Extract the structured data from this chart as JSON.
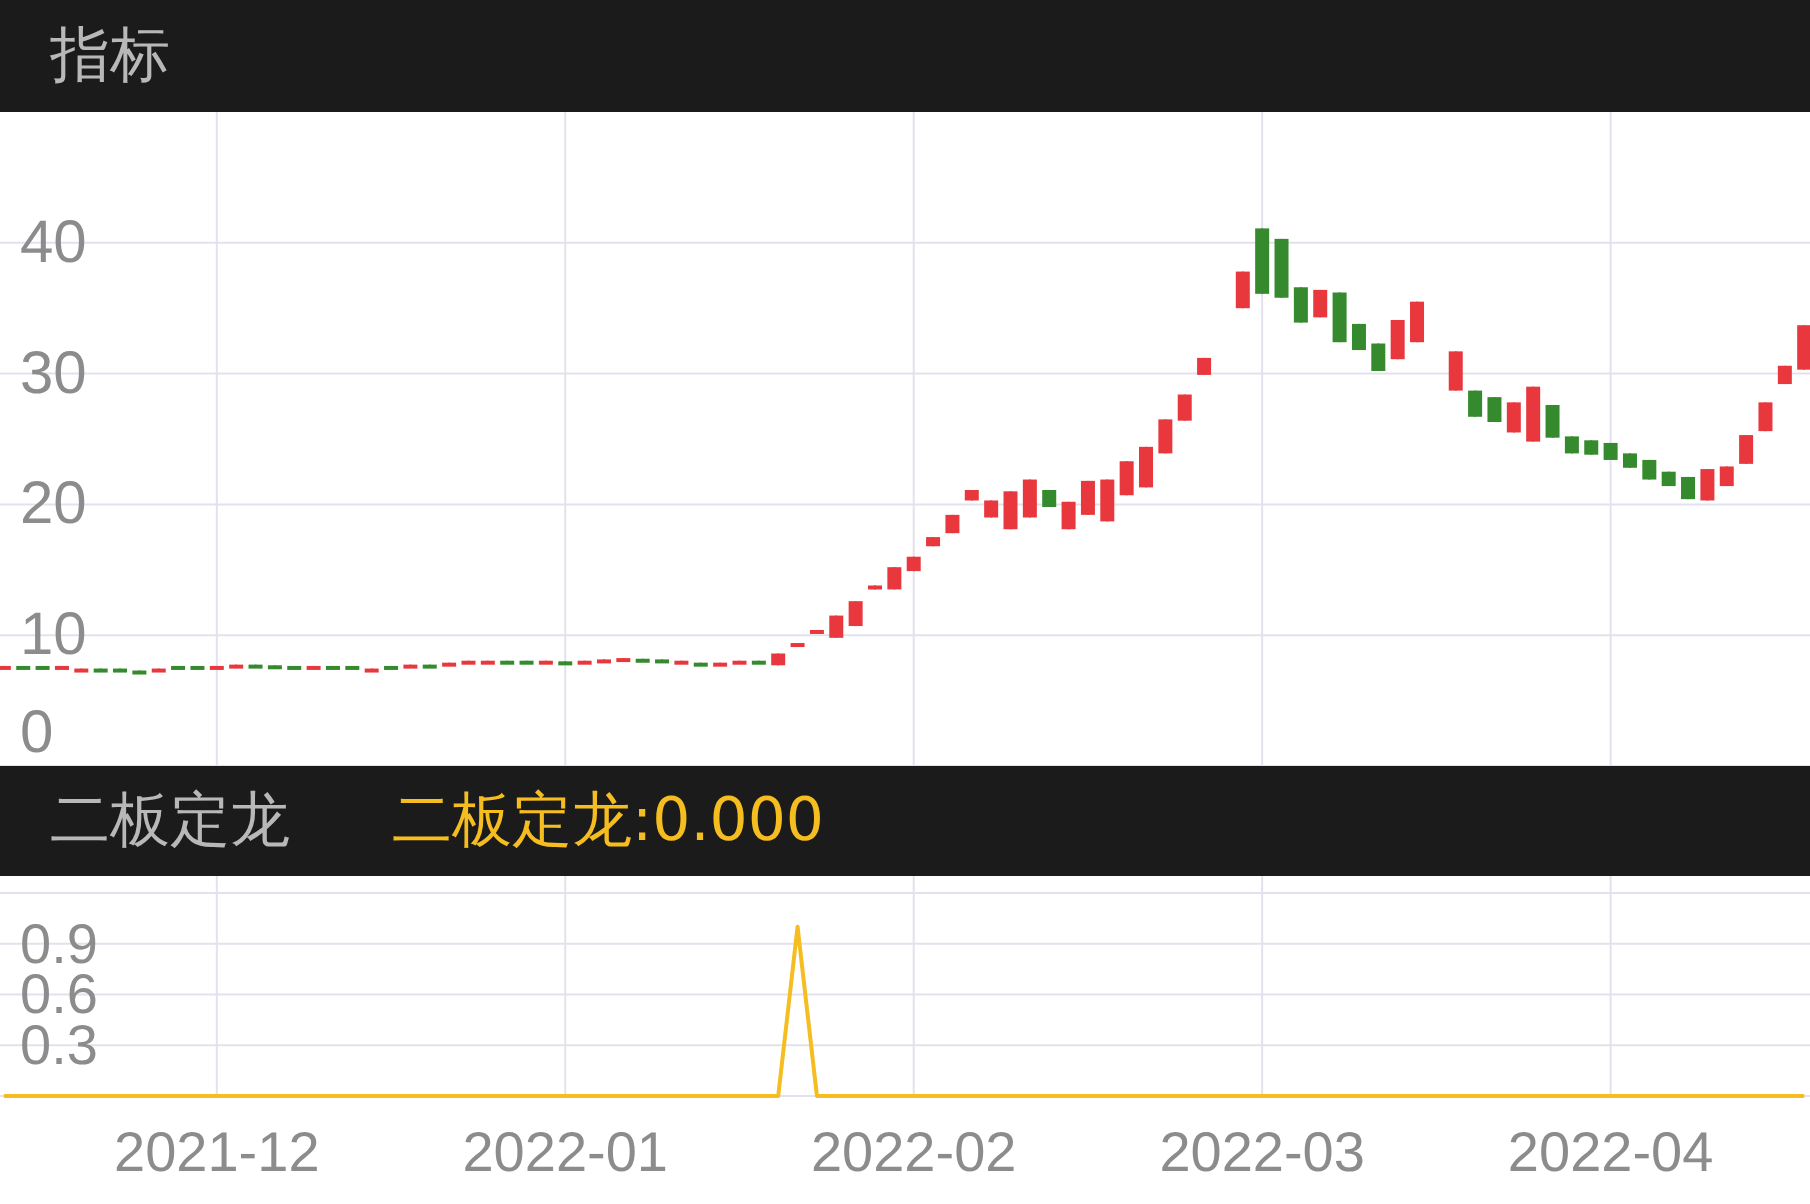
{
  "chart_data": [
    {
      "type": "candlestick",
      "title": "指标",
      "categories": [
        null,
        null,
        null,
        null,
        null,
        null,
        null,
        null,
        null,
        null,
        null,
        "2021-12",
        null,
        null,
        null,
        null,
        null,
        null,
        null,
        null,
        null,
        null,
        null,
        null,
        null,
        null,
        null,
        null,
        null,
        "2022-01",
        null,
        null,
        null,
        null,
        null,
        null,
        null,
        null,
        null,
        null,
        null,
        null,
        null,
        null,
        null,
        null,
        null,
        "2022-02",
        null,
        null,
        null,
        null,
        null,
        null,
        null,
        null,
        null,
        null,
        null,
        null,
        null,
        null,
        null,
        null,
        null,
        "2022-03",
        null,
        null,
        null,
        null,
        null,
        null,
        null,
        null,
        null,
        null,
        null,
        null,
        null,
        null,
        null,
        null,
        null,
        "2022-04",
        null,
        null,
        null,
        null,
        null,
        null,
        null,
        null,
        null,
        null
      ],
      "ohlc": [
        [
          7.55,
          7.65,
          7.55,
          7.65
        ],
        [
          7.65,
          7.65,
          7.55,
          7.55
        ],
        [
          7.65,
          7.65,
          7.55,
          7.55
        ],
        [
          7.55,
          7.65,
          7.55,
          7.65
        ],
        [
          7.35,
          7.45,
          7.35,
          7.45
        ],
        [
          7.45,
          7.45,
          7.35,
          7.35
        ],
        [
          7.45,
          7.45,
          7.35,
          7.35
        ],
        [
          7.3,
          7.3,
          7.2,
          7.2
        ],
        [
          7.35,
          7.45,
          7.35,
          7.45
        ],
        [
          7.65,
          7.65,
          7.55,
          7.55
        ],
        [
          7.65,
          7.65,
          7.55,
          7.55
        ],
        [
          7.55,
          7.65,
          7.55,
          7.65
        ],
        [
          7.65,
          7.75,
          7.65,
          7.75
        ],
        [
          7.75,
          7.75,
          7.65,
          7.65
        ],
        [
          7.7,
          7.7,
          7.6,
          7.6
        ],
        [
          7.65,
          7.65,
          7.55,
          7.55
        ],
        [
          7.55,
          7.65,
          7.55,
          7.65
        ],
        [
          7.65,
          7.65,
          7.55,
          7.55
        ],
        [
          7.65,
          7.65,
          7.55,
          7.55
        ],
        [
          7.35,
          7.45,
          7.35,
          7.45
        ],
        [
          7.65,
          7.65,
          7.55,
          7.55
        ],
        [
          7.65,
          7.75,
          7.65,
          7.75
        ],
        [
          7.75,
          7.75,
          7.65,
          7.65
        ],
        [
          7.8,
          7.9,
          7.8,
          7.9
        ],
        [
          7.95,
          8.05,
          7.95,
          8.05
        ],
        [
          7.95,
          8.05,
          7.95,
          8.05
        ],
        [
          8.05,
          8.05,
          7.95,
          7.95
        ],
        [
          8.05,
          8.05,
          7.95,
          7.95
        ],
        [
          7.95,
          8.05,
          7.95,
          8.05
        ],
        [
          8.0,
          8.0,
          7.9,
          7.9
        ],
        [
          7.95,
          8.05,
          7.95,
          8.05
        ],
        [
          8.05,
          8.15,
          8.05,
          8.15
        ],
        [
          8.05,
          8.25,
          8.05,
          8.25
        ],
        [
          8.2,
          8.2,
          8.1,
          8.1
        ],
        [
          8.15,
          8.15,
          8.05,
          8.05
        ],
        [
          7.95,
          8.05,
          7.95,
          8.05
        ],
        [
          7.9,
          7.9,
          7.8,
          7.8
        ],
        [
          7.8,
          7.9,
          7.8,
          7.9
        ],
        [
          7.95,
          8.05,
          7.95,
          8.05
        ],
        [
          8.05,
          8.05,
          7.95,
          7.95
        ],
        [
          7.7,
          8.6,
          7.7,
          8.6
        ],
        [
          9.1,
          9.4,
          9.1,
          9.4
        ],
        [
          10.3,
          10.4,
          10.3,
          10.4
        ],
        [
          9.8,
          11.5,
          9.8,
          11.5
        ],
        [
          10.7,
          12.6,
          10.7,
          12.6
        ],
        [
          13.5,
          13.8,
          13.5,
          13.8
        ],
        [
          13.5,
          15.2,
          13.5,
          15.2
        ],
        [
          14.9,
          16.0,
          14.9,
          16.0
        ],
        [
          16.8,
          17.5,
          16.8,
          17.5
        ],
        [
          17.8,
          19.2,
          17.8,
          19.2
        ],
        [
          20.3,
          21.1,
          20.3,
          21.1
        ],
        [
          19.0,
          20.3,
          19.0,
          20.3
        ],
        [
          18.1,
          21.0,
          18.1,
          21.0
        ],
        [
          19.0,
          21.9,
          19.0,
          21.9
        ],
        [
          21.1,
          21.1,
          19.8,
          19.8
        ],
        [
          18.1,
          20.2,
          18.1,
          20.2
        ],
        [
          19.2,
          21.8,
          19.2,
          21.8
        ],
        [
          18.7,
          21.9,
          18.7,
          21.9
        ],
        [
          20.7,
          23.3,
          20.7,
          23.3
        ],
        [
          21.3,
          24.4,
          21.3,
          24.4
        ],
        [
          23.9,
          26.5,
          23.9,
          26.5
        ],
        [
          26.4,
          28.4,
          26.4,
          28.4
        ],
        [
          29.9,
          31.2,
          29.9,
          31.2
        ],
        null,
        [
          35.0,
          37.8,
          35.0,
          37.8
        ],
        [
          41.1,
          41.1,
          36.1,
          36.1
        ],
        [
          40.3,
          40.3,
          35.8,
          35.8
        ],
        [
          36.6,
          36.6,
          33.9,
          33.9
        ],
        [
          34.3,
          36.4,
          34.3,
          36.4
        ],
        [
          36.2,
          36.2,
          32.4,
          32.4
        ],
        [
          33.8,
          33.8,
          31.8,
          31.8
        ],
        [
          32.3,
          32.3,
          30.2,
          30.2
        ],
        [
          31.1,
          34.1,
          31.1,
          34.1
        ],
        [
          32.4,
          35.5,
          32.4,
          35.5
        ],
        null,
        [
          28.7,
          31.7,
          28.7,
          31.7
        ],
        [
          28.7,
          28.7,
          26.7,
          26.7
        ],
        [
          28.2,
          28.2,
          26.3,
          26.3
        ],
        [
          25.5,
          27.8,
          25.5,
          27.8
        ],
        [
          24.8,
          29.0,
          24.8,
          29.0
        ],
        [
          27.6,
          27.6,
          25.1,
          25.1
        ],
        [
          25.2,
          25.2,
          23.9,
          23.9
        ],
        [
          24.9,
          24.9,
          23.8,
          23.8
        ],
        [
          24.7,
          24.7,
          23.4,
          23.4
        ],
        [
          23.9,
          23.9,
          22.8,
          22.8
        ],
        [
          23.4,
          23.4,
          21.9,
          21.9
        ],
        [
          22.5,
          22.5,
          21.4,
          21.4
        ],
        [
          22.1,
          22.1,
          20.4,
          20.4
        ],
        [
          20.3,
          22.7,
          20.3,
          22.7
        ],
        [
          21.4,
          22.9,
          21.4,
          22.9
        ],
        [
          23.1,
          25.3,
          23.1,
          25.3
        ],
        [
          25.6,
          27.8,
          25.6,
          27.8
        ],
        [
          29.2,
          30.6,
          29.2,
          30.6
        ],
        [
          30.3,
          33.7,
          30.3,
          33.7
        ]
      ],
      "colors": [
        "#e8383d",
        "#348a2c",
        "#348a2c",
        "#e8383d",
        "#e8383d",
        "#348a2c",
        "#348a2c",
        "#348a2c",
        "#e8383d",
        "#348a2c",
        "#348a2c",
        "#e8383d",
        "#e8383d",
        "#348a2c",
        "#348a2c",
        "#348a2c",
        "#e8383d",
        "#348a2c",
        "#348a2c",
        "#e8383d",
        "#348a2c",
        "#e8383d",
        "#348a2c",
        "#e8383d",
        "#e8383d",
        "#e8383d",
        "#348a2c",
        "#348a2c",
        "#e8383d",
        "#348a2c",
        "#e8383d",
        "#e8383d",
        "#e8383d",
        "#348a2c",
        "#348a2c",
        "#e8383d",
        "#348a2c",
        "#e8383d",
        "#e8383d",
        "#348a2c",
        "#e8383d",
        "#e8383d",
        "#e8383d",
        "#e8383d",
        "#e8383d",
        "#e8383d",
        "#e8383d",
        "#e8383d",
        "#e8383d",
        "#e8383d",
        "#e8383d",
        "#e8383d",
        "#e8383d",
        "#e8383d",
        "#348a2c",
        "#e8383d",
        "#e8383d",
        "#e8383d",
        "#e8383d",
        "#e8383d",
        "#e8383d",
        "#e8383d",
        "#e8383d",
        null,
        "#e8383d",
        "#348a2c",
        "#348a2c",
        "#348a2c",
        "#e8383d",
        "#348a2c",
        "#348a2c",
        "#348a2c",
        "#e8383d",
        "#e8383d",
        null,
        "#e8383d",
        "#348a2c",
        "#348a2c",
        "#e8383d",
        "#e8383d",
        "#348a2c",
        "#348a2c",
        "#348a2c",
        "#348a2c",
        "#348a2c",
        "#348a2c",
        "#348a2c",
        "#348a2c",
        "#e8383d",
        "#e8383d",
        "#e8383d",
        "#e8383d",
        "#e8383d",
        "#e8383d"
      ],
      "ylim": [
        0,
        50
      ],
      "yticks": [
        0,
        10,
        20,
        30,
        40
      ],
      "grid": true,
      "tick_labels": "y"
    },
    {
      "type": "line",
      "title": "二板定龙",
      "annotations": [
        "二板定龙:0.000"
      ],
      "categories": [
        null,
        null,
        null,
        null,
        null,
        null,
        null,
        null,
        null,
        null,
        null,
        "2021-12",
        null,
        null,
        null,
        null,
        null,
        null,
        null,
        null,
        null,
        null,
        null,
        null,
        null,
        null,
        null,
        null,
        null,
        "2022-01",
        null,
        null,
        null,
        null,
        null,
        null,
        null,
        null,
        null,
        null,
        null,
        null,
        null,
        null,
        null,
        null,
        null,
        "2022-02",
        null,
        null,
        null,
        null,
        null,
        null,
        null,
        null,
        null,
        null,
        null,
        null,
        null,
        null,
        null,
        null,
        null,
        "2022-03",
        null,
        null,
        null,
        null,
        null,
        null,
        null,
        null,
        null,
        null,
        null,
        null,
        null,
        null,
        null,
        null,
        null,
        "2022-04",
        null,
        null,
        null,
        null,
        null,
        null,
        null,
        null,
        null,
        null
      ],
      "series": [
        {
          "color": "#f5bd1f",
          "values": [
            0,
            0,
            0,
            0,
            0,
            0,
            0,
            0,
            0,
            0,
            0,
            0,
            0,
            0,
            0,
            0,
            0,
            0,
            0,
            0,
            0,
            0,
            0,
            0,
            0,
            0,
            0,
            0,
            0,
            0,
            0,
            0,
            0,
            0,
            0,
            0,
            0,
            0,
            0,
            0,
            0,
            1,
            0,
            0,
            0,
            0,
            0,
            0,
            0,
            0,
            0,
            0,
            0,
            0,
            0,
            0,
            0,
            0,
            0,
            0,
            0,
            0,
            0,
            null,
            0,
            0,
            0,
            0,
            0,
            0,
            0,
            0,
            0,
            0,
            null,
            0,
            0,
            0,
            0,
            0,
            0,
            0,
            0,
            0,
            0,
            0,
            0,
            0,
            0,
            0,
            0,
            0,
            0,
            0
          ]
        }
      ],
      "ylim": [
        0,
        1.3
      ],
      "yticks": [
        0.3,
        0.6,
        0.9,
        {
          "value": 1.2,
          "label": null
        }
      ],
      "grid": true
    }
  ]
}
